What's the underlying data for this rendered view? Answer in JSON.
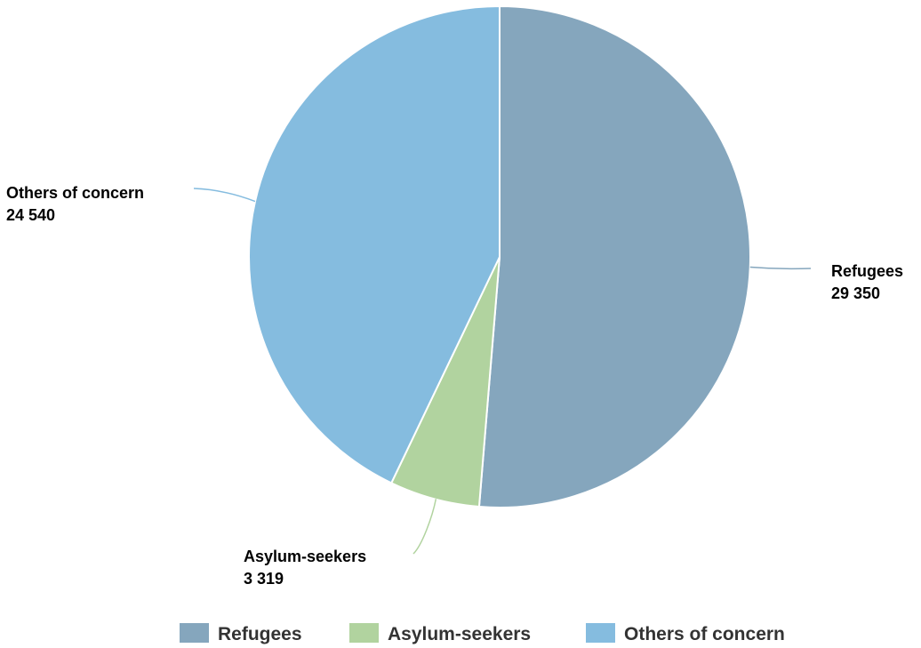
{
  "chart_data": {
    "type": "pie",
    "series": [
      {
        "name": "Refugees",
        "value": 29350,
        "value_label": "29 350",
        "color": "#85a6bd"
      },
      {
        "name": "Asylum-seekers",
        "value": 3319,
        "value_label": "3 319",
        "color": "#b1d39f"
      },
      {
        "name": "Others of concern",
        "value": 24540,
        "value_label": "24 540",
        "color": "#85bcdf"
      }
    ],
    "legend_position": "bottom",
    "slice_border_color": "#ffffff"
  }
}
